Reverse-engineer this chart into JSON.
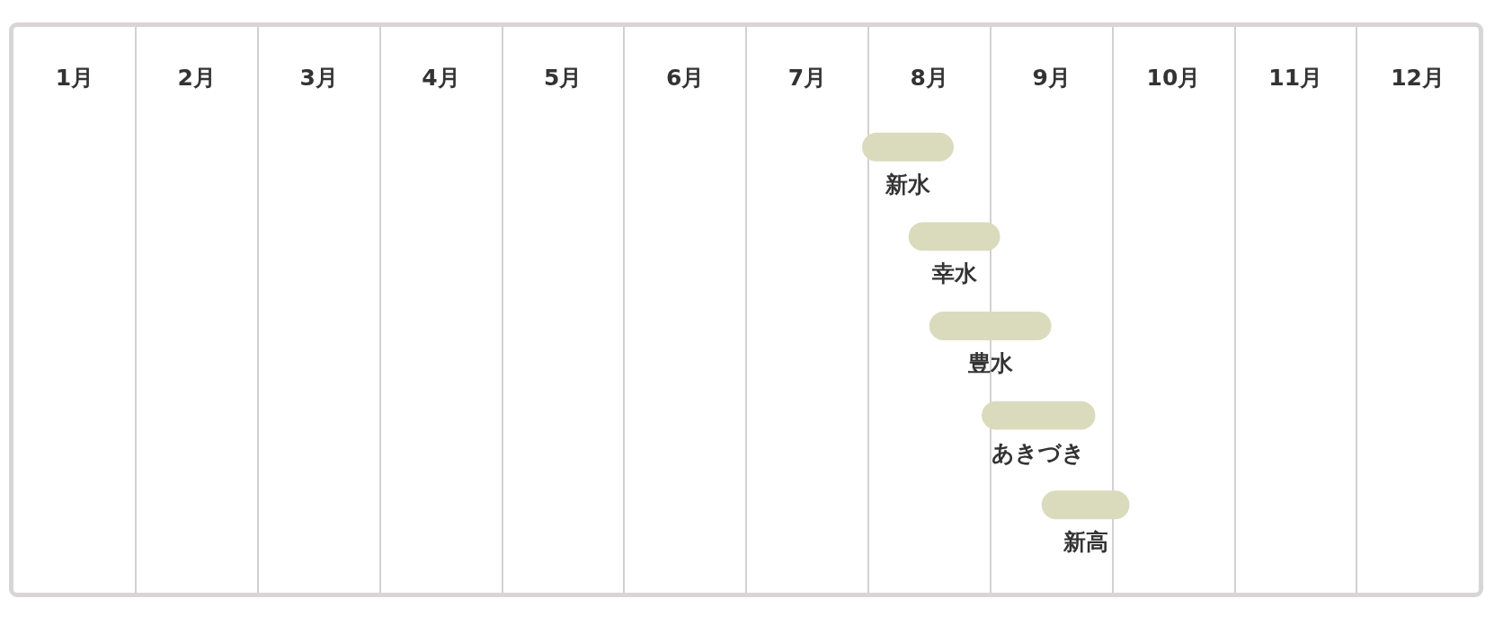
{
  "chart_data": {
    "type": "bar",
    "orientation": "horizontal",
    "categories": [
      "新水",
      "幸水",
      "豊水",
      "あきづき",
      "新高"
    ],
    "base": [
      6.95,
      7.33,
      7.5,
      7.93,
      8.42
    ],
    "values": [
      0.75,
      0.75,
      1,
      0.93,
      0.72
    ],
    "color": "#dadbbc",
    "xlim": [
      0,
      12
    ],
    "xticks": [
      {
        "value": 0.5,
        "label": "1月"
      },
      {
        "value": 1,
        "label": null
      },
      {
        "value": 1.5,
        "label": "2月"
      },
      {
        "value": 2,
        "label": null
      },
      {
        "value": 2.5,
        "label": "3月"
      },
      {
        "value": 3,
        "label": null
      },
      {
        "value": 3.5,
        "label": "4月"
      },
      {
        "value": 4,
        "label": null
      },
      {
        "value": 4.5,
        "label": "5月"
      },
      {
        "value": 5,
        "label": null
      },
      {
        "value": 5.5,
        "label": "6月"
      },
      {
        "value": 6,
        "label": null
      },
      {
        "value": 6.5,
        "label": "7月"
      },
      {
        "value": 7,
        "label": null
      },
      {
        "value": 7.5,
        "label": "8月"
      },
      {
        "value": 8,
        "label": null
      },
      {
        "value": 8.5,
        "label": "9月"
      },
      {
        "value": 9,
        "label": null
      },
      {
        "value": 9.5,
        "label": "10月"
      },
      {
        "value": 10,
        "label": null
      },
      {
        "value": 10.5,
        "label": "11月"
      },
      {
        "value": 11,
        "label": null
      },
      {
        "value": 11.5,
        "label": "12月"
      }
    ],
    "grid": "x",
    "tick_labels": "x"
  }
}
